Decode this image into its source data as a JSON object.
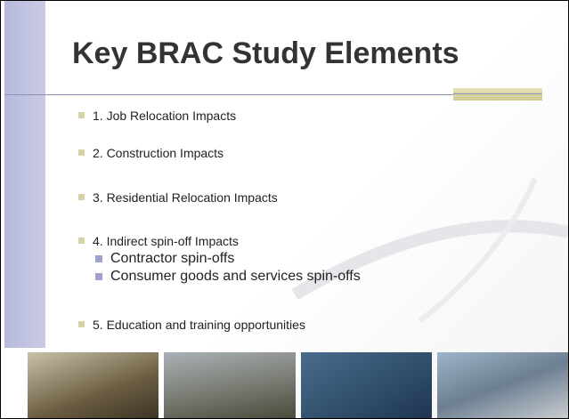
{
  "slide": {
    "title": "Key BRAC Study Elements",
    "bullets": [
      {
        "text": "1. Job Relocation Impacts"
      },
      {
        "text": "2. Construction Impacts"
      },
      {
        "text": "3. Residential Relocation Impacts"
      },
      {
        "text": "4. Indirect spin-off Impacts",
        "sub": [
          "Contractor spin-offs",
          "Consumer goods and services spin-offs"
        ]
      },
      {
        "text": "5. Education and training opportunities"
      }
    ]
  }
}
